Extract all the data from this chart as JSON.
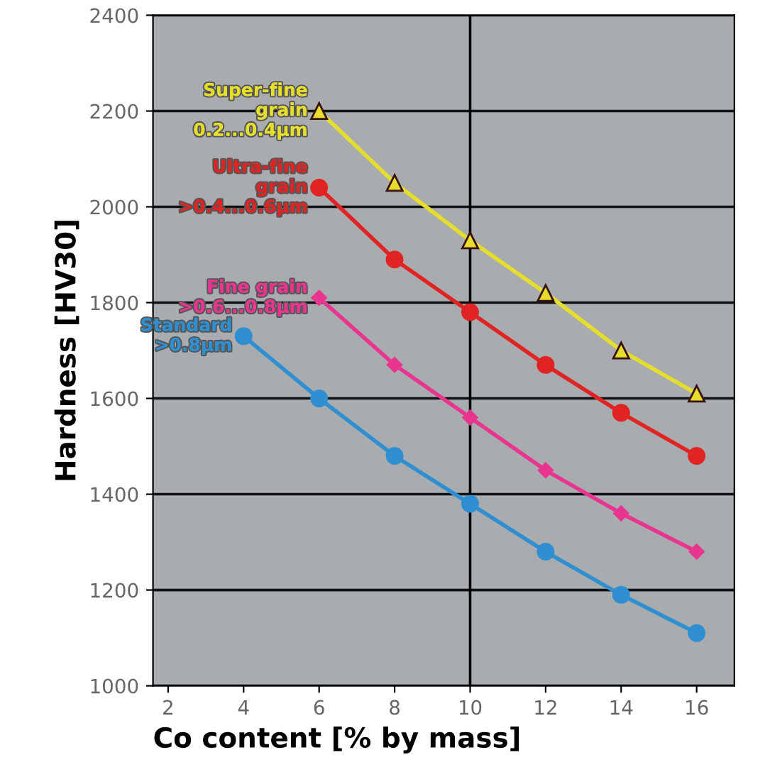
{
  "chart_data": {
    "type": "line",
    "xlabel": "Co content [% by mass]",
    "ylabel": "Hardness [HV30]",
    "xlim": [
      1.6,
      17.0
    ],
    "xticks": [
      2,
      4,
      6,
      8,
      10,
      12,
      14,
      16
    ],
    "ylim": [
      1000,
      2400
    ],
    "yticks": [
      1000,
      1200,
      1400,
      1600,
      1800,
      2000,
      2200,
      2400
    ],
    "grid": "y",
    "ref_lines": [
      {
        "axis": "x",
        "value": 10,
        "color": "#000000"
      }
    ],
    "series": [
      {
        "name": "Super-fine\ngrain\n0.2...0.4µm",
        "color": "#e6de2c",
        "marker": "triangle",
        "x": [
          6,
          8,
          10,
          12,
          14,
          16
        ],
        "values": [
          2200,
          2050,
          1930,
          1820,
          1700,
          1610
        ]
      },
      {
        "name": "Ultra-fine\ngrain\n>0.4...0.6µm",
        "color": "#e02424",
        "marker": "circle",
        "x": [
          6,
          8,
          10,
          12,
          14,
          16
        ],
        "values": [
          2040,
          1890,
          1780,
          1670,
          1570,
          1480
        ]
      },
      {
        "name": "Fine grain\n>0.6...0.8µm",
        "color": "#e8358f",
        "marker": "diamond",
        "x": [
          6,
          8,
          10,
          12,
          14,
          16
        ],
        "values": [
          1810,
          1670,
          1560,
          1450,
          1360,
          1280
        ]
      },
      {
        "name": "Standard\n>0.8µm",
        "color": "#2f8fd0",
        "marker": "circle",
        "x": [
          4,
          6,
          8,
          10,
          12,
          14,
          16
        ],
        "values": [
          1730,
          1600,
          1480,
          1380,
          1280,
          1190,
          1110
        ]
      }
    ]
  }
}
